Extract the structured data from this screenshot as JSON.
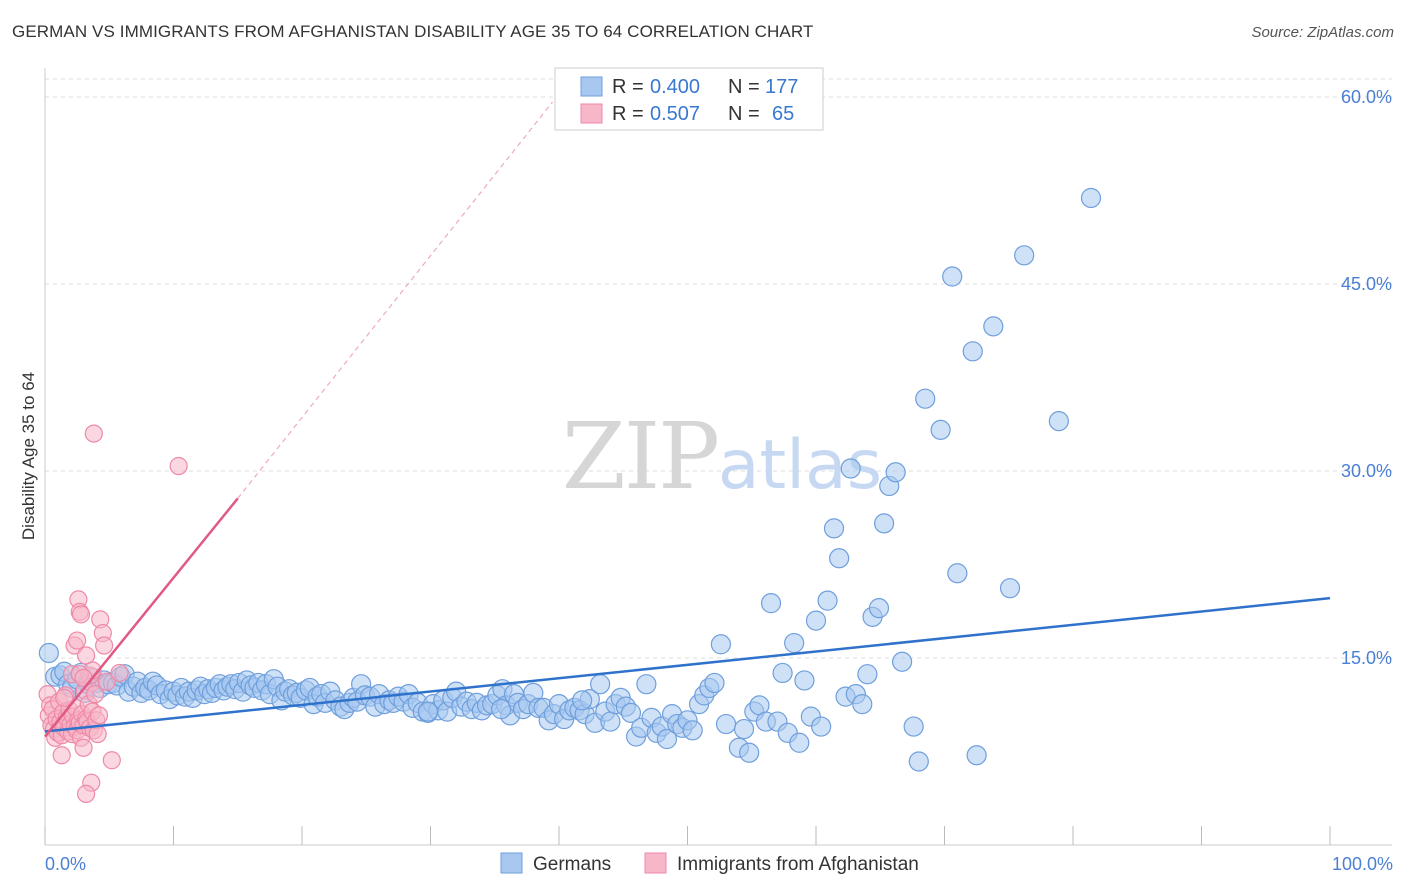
{
  "title": "GERMAN VS IMMIGRANTS FROM AFGHANISTAN DISABILITY AGE 35 TO 64 CORRELATION CHART",
  "source": "Source: ZipAtlas.com",
  "watermark": {
    "zip": "ZIP",
    "atlas": "atlas"
  },
  "colors": {
    "germans_fill": "#a8c8f0",
    "germans_stroke": "#6f9fdc",
    "germans_line": "#2f72cc",
    "afghan_fill": "#f7b7c8",
    "afghan_stroke": "#ee8aa8",
    "afghan_line": "#e05a85",
    "tick_text": "#4a7fd4",
    "grid": "#dddddd"
  },
  "legend": {
    "germans": {
      "r_label": "R =",
      "r_value": "0.400",
      "n_label": "N =",
      "n_value": "177"
    },
    "afghan": {
      "r_label": "R =",
      "r_value": "0.507",
      "n_label": "N =",
      "n_value": "65"
    }
  },
  "bottom_legend": [
    "Germans",
    "Immigrants from Afghanistan"
  ],
  "chart_data": {
    "type": "scatter",
    "xlabel": "",
    "ylabel": "Disability Age 35 to 64",
    "xlim": [
      0,
      100
    ],
    "ylim": [
      0,
      62
    ],
    "x_tick_labels": [
      "0.0%",
      "100.0%"
    ],
    "y_ticks": [
      15,
      30,
      45,
      60
    ],
    "y_tick_labels": [
      "15.0%",
      "30.0%",
      "45.0%",
      "60.0%"
    ],
    "grid": "horizontal dashed",
    "legend_position": "top-center",
    "series": [
      {
        "name": "Germans",
        "r": 0.4,
        "n": 177,
        "trend": {
          "x": [
            0,
            100
          ],
          "y": [
            9.1,
            19.8
          ]
        },
        "points": [
          [
            0.3,
            15.4
          ],
          [
            0.8,
            13.5
          ],
          [
            1.2,
            13.6
          ],
          [
            1.5,
            13.9
          ],
          [
            1.8,
            12.9
          ],
          [
            2.1,
            12.6
          ],
          [
            2.5,
            13.3
          ],
          [
            2.8,
            13.8
          ],
          [
            3.1,
            12.2
          ],
          [
            3.4,
            12.9
          ],
          [
            3.7,
            13.4
          ],
          [
            4.0,
            13.0
          ],
          [
            4.3,
            12.6
          ],
          [
            4.6,
            13.2
          ],
          [
            4.9,
            12.9
          ],
          [
            5.3,
            13.0
          ],
          [
            5.6,
            12.8
          ],
          [
            5.9,
            13.5
          ],
          [
            6.2,
            13.7
          ],
          [
            6.5,
            12.3
          ],
          [
            6.9,
            12.7
          ],
          [
            7.2,
            13.1
          ],
          [
            7.5,
            12.2
          ],
          [
            7.8,
            12.6
          ],
          [
            8.1,
            12.4
          ],
          [
            8.4,
            13.1
          ],
          [
            8.7,
            12.8
          ],
          [
            9.0,
            12.1
          ],
          [
            9.4,
            12.4
          ],
          [
            9.7,
            11.7
          ],
          [
            10.0,
            12.3
          ],
          [
            10.3,
            12.0
          ],
          [
            10.6,
            12.6
          ],
          [
            10.9,
            11.9
          ],
          [
            11.2,
            12.3
          ],
          [
            11.5,
            11.8
          ],
          [
            11.8,
            12.4
          ],
          [
            12.1,
            12.7
          ],
          [
            12.4,
            12.1
          ],
          [
            12.7,
            12.5
          ],
          [
            13.0,
            12.2
          ],
          [
            13.3,
            12.6
          ],
          [
            13.6,
            12.9
          ],
          [
            13.9,
            12.4
          ],
          [
            14.2,
            12.7
          ],
          [
            14.5,
            12.9
          ],
          [
            14.8,
            12.5
          ],
          [
            15.1,
            13.0
          ],
          [
            15.4,
            12.3
          ],
          [
            15.7,
            13.2
          ],
          [
            16.0,
            12.8
          ],
          [
            16.3,
            12.6
          ],
          [
            16.6,
            13.0
          ],
          [
            16.9,
            12.4
          ],
          [
            17.2,
            12.9
          ],
          [
            17.5,
            12.1
          ],
          [
            17.8,
            13.3
          ],
          [
            18.1,
            12.7
          ],
          [
            18.4,
            11.6
          ],
          [
            18.7,
            12.3
          ],
          [
            19.0,
            12.5
          ],
          [
            19.3,
            12.0
          ],
          [
            19.6,
            12.2
          ],
          [
            19.9,
            11.8
          ],
          [
            20.3,
            12.4
          ],
          [
            20.6,
            12.6
          ],
          [
            20.9,
            11.3
          ],
          [
            21.2,
            11.9
          ],
          [
            21.5,
            12.1
          ],
          [
            21.8,
            11.4
          ],
          [
            22.2,
            12.3
          ],
          [
            22.6,
            11.6
          ],
          [
            23.0,
            11.1
          ],
          [
            23.3,
            10.9
          ],
          [
            23.7,
            11.4
          ],
          [
            24.0,
            11.8
          ],
          [
            24.3,
            11.5
          ],
          [
            24.6,
            12.9
          ],
          [
            24.9,
            12.0
          ],
          [
            25.3,
            11.9
          ],
          [
            25.7,
            11.1
          ],
          [
            26.0,
            12.1
          ],
          [
            26.4,
            11.3
          ],
          [
            26.8,
            11.6
          ],
          [
            27.1,
            11.4
          ],
          [
            27.5,
            11.9
          ],
          [
            27.9,
            11.5
          ],
          [
            28.3,
            12.1
          ],
          [
            28.6,
            11.0
          ],
          [
            29.0,
            11.4
          ],
          [
            29.4,
            10.7
          ],
          [
            29.8,
            10.6
          ],
          [
            30.2,
            11.3
          ],
          [
            30.6,
            10.8
          ],
          [
            31.0,
            11.6
          ],
          [
            31.3,
            10.7
          ],
          [
            31.7,
            11.8
          ],
          [
            32.0,
            12.3
          ],
          [
            32.4,
            11.1
          ],
          [
            32.8,
            11.5
          ],
          [
            33.2,
            10.9
          ],
          [
            33.6,
            11.4
          ],
          [
            34.0,
            10.8
          ],
          [
            34.4,
            11.2
          ],
          [
            34.8,
            11.3
          ],
          [
            35.2,
            12.0
          ],
          [
            35.6,
            12.5
          ],
          [
            35.9,
            11.2
          ],
          [
            36.2,
            10.4
          ],
          [
            36.5,
            12.1
          ],
          [
            36.8,
            11.4
          ],
          [
            37.2,
            10.9
          ],
          [
            37.6,
            11.3
          ],
          [
            38.0,
            12.2
          ],
          [
            38.4,
            11.0
          ],
          [
            38.8,
            11.0
          ],
          [
            39.2,
            10.0
          ],
          [
            39.6,
            10.5
          ],
          [
            40.0,
            11.3
          ],
          [
            40.4,
            10.1
          ],
          [
            40.8,
            10.8
          ],
          [
            41.2,
            11.0
          ],
          [
            41.6,
            10.8
          ],
          [
            42.0,
            10.5
          ],
          [
            42.4,
            11.7
          ],
          [
            42.8,
            9.8
          ],
          [
            43.2,
            12.9
          ],
          [
            43.6,
            10.7
          ],
          [
            44.0,
            9.9
          ],
          [
            44.4,
            11.3
          ],
          [
            44.8,
            11.8
          ],
          [
            45.2,
            11.1
          ],
          [
            45.6,
            10.6
          ],
          [
            46.0,
            8.7
          ],
          [
            46.4,
            9.4
          ],
          [
            46.8,
            12.9
          ],
          [
            47.2,
            10.2
          ],
          [
            47.6,
            9.0
          ],
          [
            48.0,
            9.5
          ],
          [
            48.4,
            8.5
          ],
          [
            48.8,
            10.5
          ],
          [
            49.2,
            9.7
          ],
          [
            49.6,
            9.4
          ],
          [
            50.0,
            10.0
          ],
          [
            50.4,
            9.2
          ],
          [
            50.9,
            11.3
          ],
          [
            51.3,
            12.0
          ],
          [
            51.7,
            12.6
          ],
          [
            52.1,
            13.0
          ],
          [
            52.6,
            16.1
          ],
          [
            53.0,
            9.7
          ],
          [
            54.0,
            7.8
          ],
          [
            54.4,
            9.3
          ],
          [
            54.8,
            7.4
          ],
          [
            55.2,
            10.7
          ],
          [
            55.6,
            11.2
          ],
          [
            56.1,
            9.9
          ],
          [
            56.5,
            19.4
          ],
          [
            57.0,
            9.9
          ],
          [
            57.4,
            13.8
          ],
          [
            57.8,
            9.0
          ],
          [
            58.3,
            16.2
          ],
          [
            58.7,
            8.2
          ],
          [
            59.1,
            13.2
          ],
          [
            59.6,
            10.3
          ],
          [
            60.0,
            18.0
          ],
          [
            60.4,
            9.5
          ],
          [
            60.9,
            19.6
          ],
          [
            61.4,
            25.4
          ],
          [
            61.8,
            23.0
          ],
          [
            62.3,
            11.9
          ],
          [
            62.7,
            30.2
          ],
          [
            63.1,
            12.1
          ],
          [
            63.6,
            11.3
          ],
          [
            64.0,
            13.7
          ],
          [
            64.4,
            18.3
          ],
          [
            64.9,
            19.0
          ],
          [
            65.3,
            25.8
          ],
          [
            65.7,
            28.8
          ],
          [
            66.2,
            29.9
          ],
          [
            66.7,
            14.7
          ],
          [
            67.6,
            9.5
          ],
          [
            68.0,
            6.7
          ],
          [
            68.5,
            35.8
          ],
          [
            69.7,
            33.3
          ],
          [
            70.6,
            45.6
          ],
          [
            71.0,
            21.8
          ],
          [
            72.2,
            39.6
          ],
          [
            72.5,
            7.2
          ],
          [
            73.8,
            41.6
          ],
          [
            75.1,
            20.6
          ],
          [
            76.2,
            47.3
          ],
          [
            78.9,
            34.0
          ],
          [
            81.4,
            51.9
          ],
          [
            29.8,
            10.7
          ],
          [
            35.5,
            10.9
          ],
          [
            41.8,
            11.6
          ]
        ]
      },
      {
        "name": "Immigrants from Afghanistan",
        "r": 0.507,
        "n": 65,
        "trend": {
          "x": [
            0,
            15
          ],
          "y": [
            8.7,
            27.8
          ],
          "dashed_to": [
            39.5,
            59.6
          ]
        },
        "points": [
          [
            0.2,
            12.1
          ],
          [
            0.3,
            10.4
          ],
          [
            0.4,
            11.2
          ],
          [
            0.5,
            9.6
          ],
          [
            0.6,
            10.9
          ],
          [
            0.7,
            9.3
          ],
          [
            0.8,
            8.6
          ],
          [
            0.9,
            10.1
          ],
          [
            1.0,
            9.0
          ],
          [
            1.1,
            11.5
          ],
          [
            1.2,
            9.9
          ],
          [
            1.3,
            8.8
          ],
          [
            1.4,
            10.6
          ],
          [
            1.5,
            9.4
          ],
          [
            1.6,
            12.0
          ],
          [
            1.7,
            10.2
          ],
          [
            1.8,
            9.1
          ],
          [
            1.9,
            10.8
          ],
          [
            2.0,
            9.7
          ],
          [
            2.1,
            8.9
          ],
          [
            2.2,
            10.3
          ],
          [
            2.3,
            9.5
          ],
          [
            2.4,
            11.0
          ],
          [
            2.5,
            9.2
          ],
          [
            2.6,
            10.0
          ],
          [
            2.7,
            9.8
          ],
          [
            2.8,
            8.6
          ],
          [
            2.9,
            10.5
          ],
          [
            3.0,
            9.6
          ],
          [
            3.1,
            12.4
          ],
          [
            3.2,
            10.1
          ],
          [
            3.3,
            9.9
          ],
          [
            3.4,
            11.3
          ],
          [
            3.5,
            9.4
          ],
          [
            3.6,
            13.0
          ],
          [
            3.7,
            10.7
          ],
          [
            3.8,
            9.2
          ],
          [
            3.9,
            12.1
          ],
          [
            4.0,
            10.0
          ],
          [
            4.1,
            8.9
          ],
          [
            1.5,
            11.8
          ],
          [
            2.1,
            13.7
          ],
          [
            2.3,
            16.0
          ],
          [
            2.5,
            16.4
          ],
          [
            2.6,
            19.7
          ],
          [
            2.7,
            18.7
          ],
          [
            2.8,
            18.5
          ],
          [
            3.2,
            15.2
          ],
          [
            3.5,
            13.6
          ],
          [
            3.7,
            14.0
          ],
          [
            4.2,
            10.4
          ],
          [
            4.3,
            18.1
          ],
          [
            4.5,
            17.0
          ],
          [
            4.6,
            16.0
          ],
          [
            3.0,
            7.8
          ],
          [
            4.8,
            13.1
          ],
          [
            1.3,
            7.2
          ],
          [
            5.2,
            6.8
          ],
          [
            3.6,
            5.0
          ],
          [
            3.2,
            4.1
          ],
          [
            2.7,
            13.7
          ],
          [
            3.0,
            13.4
          ],
          [
            5.8,
            13.8
          ],
          [
            3.8,
            33.0
          ],
          [
            10.4,
            30.4
          ]
        ]
      }
    ]
  }
}
